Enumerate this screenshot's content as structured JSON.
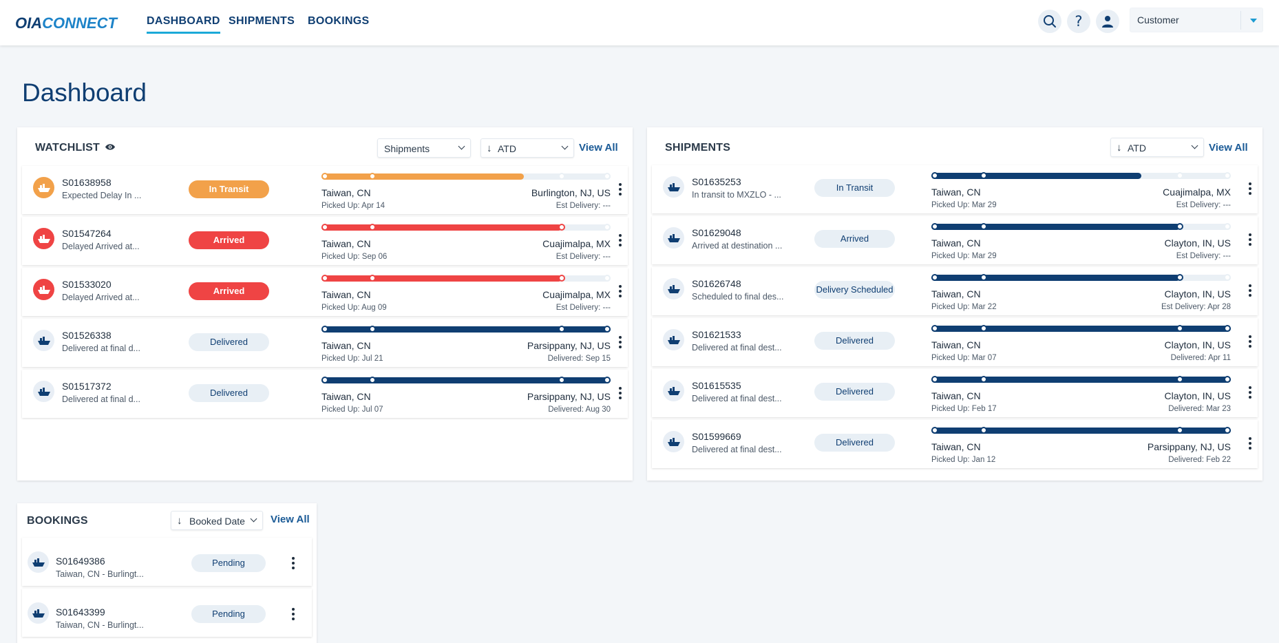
{
  "header": {
    "logo_a": "OIA",
    "logo_b": "CONNECT",
    "nav": [
      {
        "label": "DASHBOARD",
        "active": true
      },
      {
        "label": "SHIPMENTS",
        "active": false
      },
      {
        "label": "BOOKINGS",
        "active": false
      }
    ],
    "icons": [
      "search-icon",
      "help-icon",
      "user-icon"
    ],
    "user_select": "Customer"
  },
  "page_title": "Dashboard",
  "colors": {
    "navy": "#0f3e72",
    "orange": "#f2a14a",
    "red": "#ef4444",
    "accent": "#1ba9d8"
  },
  "watchlist": {
    "title": "WATCHLIST",
    "filter": "Shipments",
    "sort": "ATD",
    "view_all": "View All",
    "rows": [
      {
        "id": "S01638958",
        "sub": "Expected Delay In ...",
        "status": "In Transit",
        "tone": "orange",
        "progress": 0.7,
        "from": "Taiwan, CN",
        "to": "Burlington, NJ, US",
        "pickup": "Picked Up: Apr 14",
        "delivery": "Est Delivery: ---"
      },
      {
        "id": "S01547264",
        "sub": "Delayed Arrived at...",
        "status": "Arrived",
        "tone": "red",
        "progress": 0.83,
        "from": "Taiwan, CN",
        "to": "Cuajimalpa, MX",
        "pickup": "Picked Up: Sep 06",
        "delivery": "Est Delivery: ---"
      },
      {
        "id": "S01533020",
        "sub": "Delayed Arrived at...",
        "status": "Arrived",
        "tone": "red",
        "progress": 0.83,
        "from": "Taiwan, CN",
        "to": "Cuajimalpa, MX",
        "pickup": "Picked Up: Aug 09",
        "delivery": "Est Delivery: ---"
      },
      {
        "id": "S01526338",
        "sub": "Delivered at final d...",
        "status": "Delivered",
        "tone": "navy",
        "progress": 1.0,
        "from": "Taiwan, CN",
        "to": "Parsippany, NJ, US",
        "pickup": "Picked Up: Jul 21",
        "delivery": "Delivered: Sep 15"
      },
      {
        "id": "S01517372",
        "sub": "Delivered at final d...",
        "status": "Delivered",
        "tone": "navy",
        "progress": 1.0,
        "from": "Taiwan, CN",
        "to": "Parsippany, NJ, US",
        "pickup": "Picked Up: Jul 07",
        "delivery": "Delivered: Aug 30"
      }
    ]
  },
  "shipments": {
    "title": "SHIPMENTS",
    "sort": "ATD",
    "view_all": "View All",
    "rows": [
      {
        "id": "S01635253",
        "sub": "In transit to MXZLO - ...",
        "status": "In Transit",
        "progress": 0.7,
        "from": "Taiwan, CN",
        "to": "Cuajimalpa, MX",
        "pickup": "Picked Up: Mar 29",
        "delivery": "Est Delivery: ---"
      },
      {
        "id": "S01629048",
        "sub": "Arrived at destination ...",
        "status": "Arrived",
        "progress": 0.83,
        "from": "Taiwan, CN",
        "to": "Clayton, IN, US",
        "pickup": "Picked Up: Mar 29",
        "delivery": "Est Delivery: ---"
      },
      {
        "id": "S01626748",
        "sub": "Scheduled to final des...",
        "status": "Delivery Scheduled",
        "progress": 0.83,
        "from": "Taiwan, CN",
        "to": "Clayton, IN, US",
        "pickup": "Picked Up: Mar 22",
        "delivery": "Est Delivery: Apr 28"
      },
      {
        "id": "S01621533",
        "sub": "Delivered at final dest...",
        "status": "Delivered",
        "progress": 1.0,
        "from": "Taiwan, CN",
        "to": "Clayton, IN, US",
        "pickup": "Picked Up: Mar 07",
        "delivery": "Delivered: Apr 11"
      },
      {
        "id": "S01615535",
        "sub": "Delivered at final dest...",
        "status": "Delivered",
        "progress": 1.0,
        "from": "Taiwan, CN",
        "to": "Clayton, IN, US",
        "pickup": "Picked Up: Feb 17",
        "delivery": "Delivered: Mar 23"
      },
      {
        "id": "S01599669",
        "sub": "Delivered at final dest...",
        "status": "Delivered",
        "progress": 1.0,
        "from": "Taiwan, CN",
        "to": "Parsippany, NJ, US",
        "pickup": "Picked Up: Jan 12",
        "delivery": "Delivered: Feb 22"
      }
    ]
  },
  "bookings": {
    "title": "BOOKINGS",
    "sort": "Booked Date",
    "view_all": "View All",
    "rows": [
      {
        "id": "S01649386",
        "sub": "Taiwan, CN - Burlingt...",
        "status": "Pending"
      },
      {
        "id": "S01643399",
        "sub": "Taiwan, CN - Burlingt...",
        "status": "Pending"
      }
    ]
  }
}
